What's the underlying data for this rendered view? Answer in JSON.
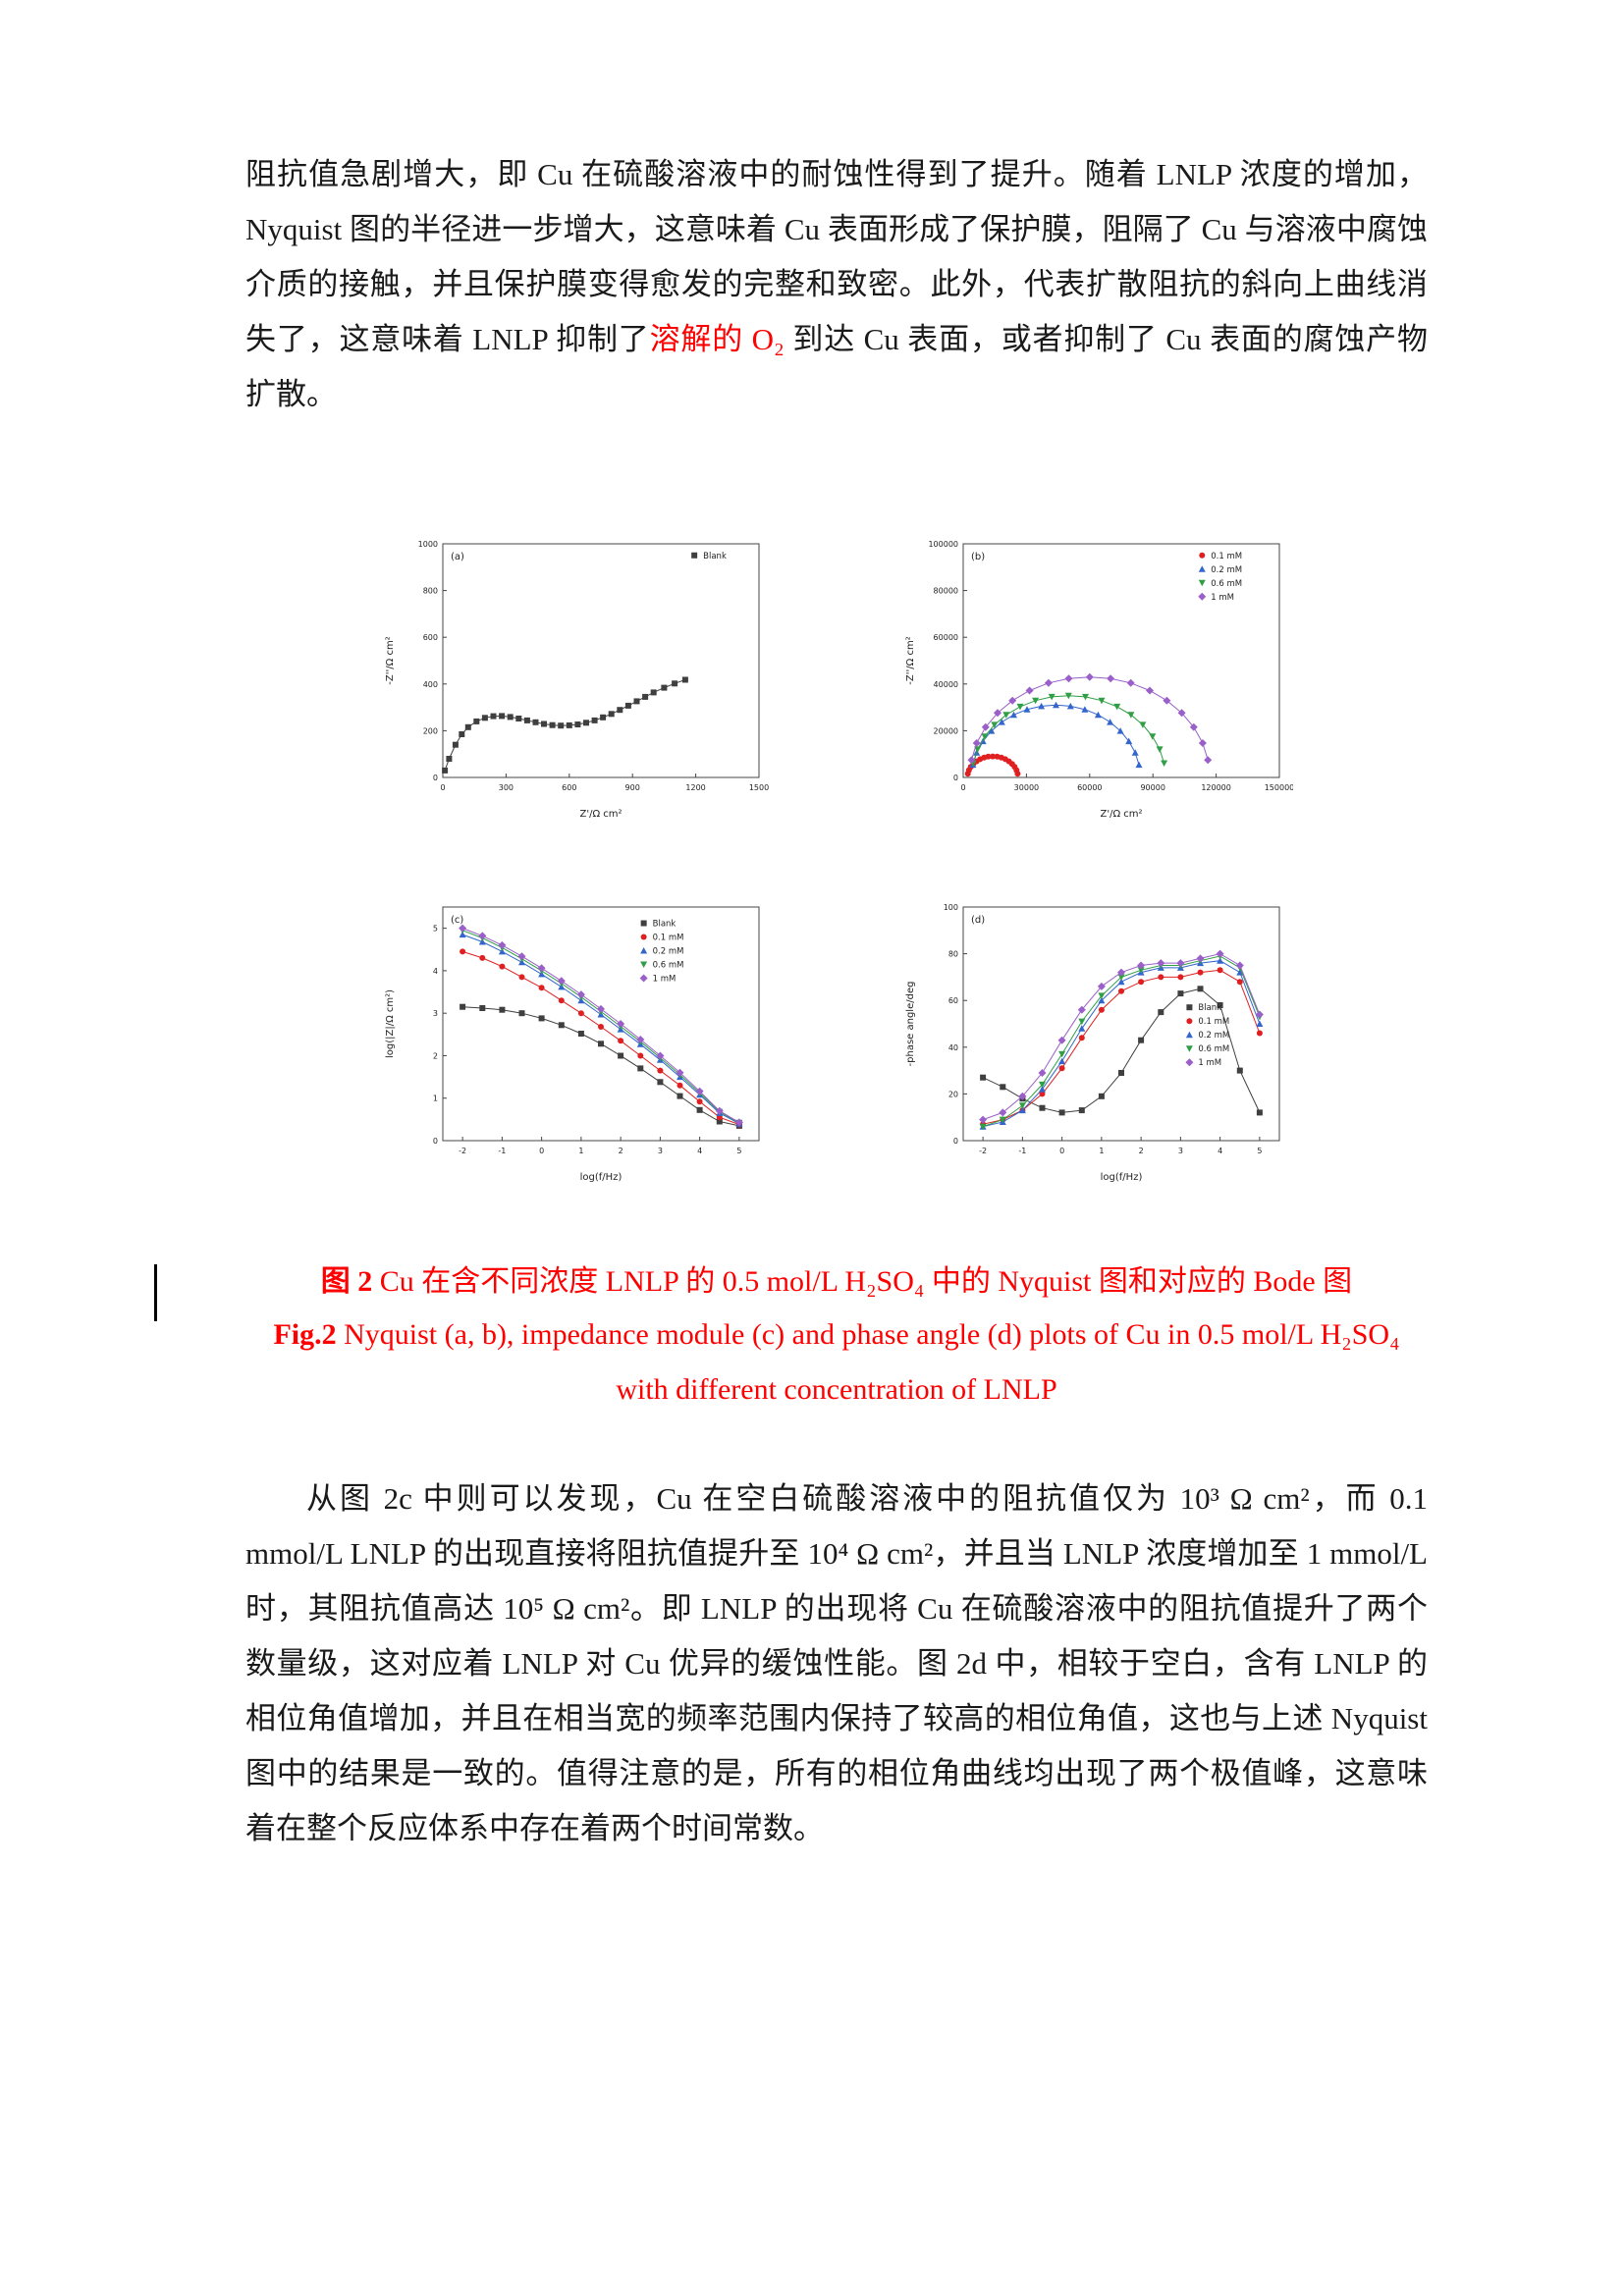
{
  "document": {
    "paragraph1": {
      "part1": "阻抗值急剧增大，即 Cu 在硫酸溶液中的耐蚀性得到了提升。随着 LNLP 浓度的增加，Nyquist 图的半径进一步增大，这意味着 Cu 表面形成了保护膜，阻隔了 Cu 与溶液中腐蚀介质的接触，并且保护膜变得愈发的完整和致密。此外，代表扩散阻抗的斜向上曲线消失了，这意味着 LNLP 抑制了",
      "red": "溶解的 O₂ ",
      "part2": "到达 Cu 表面，或者抑制了 Cu 表面的腐蚀产物扩散。"
    },
    "caption_cn": {
      "bold": "图 2",
      "rest": " Cu 在含不同浓度 LNLP 的 0.5 mol/L H₂SO₄ 中的 Nyquist 图和对应的 Bode 图"
    },
    "caption_en": {
      "bold": "Fig.2",
      "line1_rest": " Nyquist (a, b), impedance module (c) and phase angle (d) plots of Cu in 0.5 mol/L H₂SO₄",
      "line2": "with different concentration of LNLP"
    },
    "paragraph2": "从图 2c 中则可以发现，Cu 在空白硫酸溶液中的阻抗值仅为 10³ Ω cm²，而 0.1 mmol/L LNLP 的出现直接将阻抗值提升至 10⁴ Ω cm²，并且当 LNLP 浓度增加至 1 mmol/L 时，其阻抗值高达 10⁵ Ω cm²。即 LNLP 的出现将 Cu 在硫酸溶液中的阻抗值提升了两个数量级，这对应着 LNLP 对 Cu 优异的缓蚀性能。图 2d 中，相较于空白，含有 LNLP 的相位角值增加，并且在相当宽的频率范围内保持了较高的相位角值，这也与上述 Nyquist 图中的结果是一致的。值得注意的是，所有的相位角曲线均出现了两个极值峰，这意味着在整个反应体系中存在着两个时间常数。"
  },
  "colors": {
    "caption_red": "#ff0000",
    "series_blank": "#3f3f3f",
    "series_01mM": "#e02020",
    "series_02mM": "#3366cc",
    "series_06mM": "#2f9e44",
    "series_1mM": "#9a5fc9"
  },
  "chart_data": [
    {
      "id": "a",
      "type": "scatter",
      "panel": "(a)",
      "title": "",
      "xlabel": "Z'/Ω cm²",
      "ylabel": "-Z''/Ω cm²",
      "xlim": [
        0,
        1500
      ],
      "ylim": [
        0,
        1000
      ],
      "xticks": [
        0,
        300,
        600,
        900,
        1200,
        1500
      ],
      "yticks": [
        0,
        200,
        400,
        600,
        800,
        1000
      ],
      "legend": {
        "fx": 0.78,
        "fy": 0.02
      },
      "series": [
        {
          "name": "Blank",
          "color": "#3f3f3f",
          "marker": "square",
          "x": [
            10,
            30,
            60,
            90,
            120,
            160,
            200,
            240,
            280,
            320,
            360,
            400,
            440,
            480,
            520,
            560,
            600,
            640,
            680,
            720,
            760,
            800,
            840,
            880,
            920,
            960,
            1000,
            1050,
            1100,
            1150
          ],
          "y": [
            30,
            80,
            140,
            185,
            215,
            240,
            255,
            262,
            263,
            259,
            252,
            244,
            236,
            229,
            224,
            222,
            223,
            227,
            234,
            244,
            257,
            272,
            289,
            307,
            326,
            345,
            364,
            384,
            402,
            418
          ]
        }
      ]
    },
    {
      "id": "b",
      "type": "scatter",
      "panel": "(b)",
      "title": "",
      "xlabel": "Z'/Ω cm²",
      "ylabel": "-Z''/Ω cm²",
      "xlim": [
        0,
        150000
      ],
      "ylim": [
        0,
        100000
      ],
      "xticks": [
        0,
        30000,
        60000,
        90000,
        120000,
        150000
      ],
      "yticks": [
        0,
        20000,
        40000,
        60000,
        80000,
        100000
      ],
      "legend": {
        "fx": 0.74,
        "fy": 0.02
      },
      "series": [
        {
          "name": "0.1 mM",
          "color": "#e02020",
          "marker": "circle",
          "x": [
            2200,
            2700,
            3600,
            4800,
            6300,
            8000,
            9900,
            11900,
            14000,
            16100,
            18100,
            20000,
            21700,
            23200,
            24400,
            25300,
            25800
          ],
          "y": [
            1600,
            3100,
            4500,
            5800,
            6900,
            7800,
            8500,
            8900,
            9000,
            8900,
            8500,
            7800,
            6900,
            5800,
            4500,
            3100,
            1600
          ]
        },
        {
          "name": "0.2 mM",
          "color": "#3366cc",
          "marker": "triangle-up",
          "x": [
            4600,
            6400,
            9400,
            13400,
            18300,
            24000,
            30300,
            37100,
            44000,
            50900,
            57700,
            64000,
            69700,
            74600,
            78600,
            81600,
            83400
          ],
          "y": [
            5400,
            10600,
            15500,
            19900,
            23700,
            26800,
            29100,
            30500,
            31000,
            30500,
            29100,
            26800,
            23700,
            19900,
            15500,
            10600,
            5400
          ]
        },
        {
          "name": "0.6 mM",
          "color": "#2f9e44",
          "marker": "triangle-down",
          "x": [
            4700,
            6800,
            10200,
            14800,
            20400,
            27000,
            34300,
            42000,
            50000,
            58000,
            65700,
            73000,
            79600,
            85200,
            89800,
            93200,
            95300
          ],
          "y": [
            6100,
            12000,
            17500,
            22500,
            26800,
            30300,
            32900,
            34500,
            35000,
            34500,
            32900,
            30300,
            26800,
            22500,
            17500,
            12000,
            6100
          ]
        },
        {
          "name": "1 mM",
          "color": "#9a5fc9",
          "marker": "diamond",
          "x": [
            3900,
            6400,
            10600,
            16300,
            23400,
            31500,
            40500,
            50100,
            60000,
            69900,
            79500,
            88500,
            96600,
            103700,
            109400,
            113600,
            116100
          ],
          "y": [
            7500,
            14700,
            21500,
            27600,
            32900,
            37200,
            40400,
            42300,
            43000,
            42300,
            40400,
            37200,
            32900,
            27600,
            21500,
            14700,
            7500
          ]
        }
      ]
    },
    {
      "id": "c",
      "type": "line",
      "panel": "(c)",
      "title": "",
      "xlabel": "log(f/Hz)",
      "ylabel": "log(|Z|/Ω cm²)",
      "xlim": [
        -2.5,
        5.5
      ],
      "ylim": [
        0,
        5.5
      ],
      "xticks": [
        -2,
        -1,
        0,
        1,
        2,
        3,
        4,
        5
      ],
      "yticks": [
        0,
        1,
        2,
        3,
        4,
        5
      ],
      "legend": {
        "fx": 0.62,
        "fy": 0.04
      },
      "x": [
        -2,
        -1.5,
        -1,
        -0.5,
        0,
        0.5,
        1,
        1.5,
        2,
        2.5,
        3,
        3.5,
        4,
        4.5,
        5
      ],
      "series": [
        {
          "name": "Blank",
          "color": "#3f3f3f",
          "marker": "square",
          "y": [
            3.15,
            3.12,
            3.08,
            3.0,
            2.88,
            2.72,
            2.52,
            2.28,
            2.0,
            1.7,
            1.38,
            1.05,
            0.72,
            0.45,
            0.35
          ]
        },
        {
          "name": "0.1 mM",
          "color": "#e02020",
          "marker": "circle",
          "y": [
            4.45,
            4.3,
            4.1,
            3.85,
            3.6,
            3.3,
            3.0,
            2.68,
            2.35,
            2.0,
            1.65,
            1.3,
            0.92,
            0.55,
            0.38
          ]
        },
        {
          "name": "0.2 mM",
          "color": "#3366cc",
          "marker": "triangle-up",
          "y": [
            4.85,
            4.68,
            4.45,
            4.2,
            3.92,
            3.62,
            3.3,
            2.97,
            2.62,
            2.27,
            1.9,
            1.5,
            1.08,
            0.65,
            0.4
          ]
        },
        {
          "name": "0.6 mM",
          "color": "#2f9e44",
          "marker": "triangle-down",
          "y": [
            4.95,
            4.77,
            4.54,
            4.28,
            4.0,
            3.7,
            3.38,
            3.04,
            2.69,
            2.33,
            1.95,
            1.55,
            1.12,
            0.68,
            0.42
          ]
        },
        {
          "name": "1 mM",
          "color": "#9a5fc9",
          "marker": "diamond",
          "y": [
            5.0,
            4.82,
            4.6,
            4.34,
            4.06,
            3.76,
            3.44,
            3.1,
            2.75,
            2.38,
            2.0,
            1.6,
            1.16,
            0.7,
            0.43
          ]
        }
      ]
    },
    {
      "id": "d",
      "type": "line",
      "panel": "(d)",
      "title": "",
      "xlabel": "log(f/Hz)",
      "ylabel": "-phase angle/deg",
      "xlim": [
        -2.5,
        5.5
      ],
      "ylim": [
        0,
        100
      ],
      "xticks": [
        -2,
        -1,
        0,
        1,
        2,
        3,
        4,
        5
      ],
      "yticks": [
        0,
        20,
        40,
        60,
        80,
        100
      ],
      "legend": {
        "fx": 0.7,
        "fy": 0.4
      },
      "x": [
        -2,
        -1.5,
        -1,
        -0.5,
        0,
        0.5,
        1,
        1.5,
        2,
        2.5,
        3,
        3.5,
        4,
        4.5,
        5
      ],
      "series": [
        {
          "name": "Blank",
          "color": "#3f3f3f",
          "marker": "square",
          "y": [
            27,
            23,
            18,
            14,
            12,
            13,
            19,
            29,
            43,
            55,
            63,
            65,
            58,
            30,
            12
          ]
        },
        {
          "name": "0.1 mM",
          "color": "#e02020",
          "marker": "circle",
          "y": [
            7,
            9,
            13,
            20,
            31,
            44,
            56,
            64,
            68,
            70,
            70,
            72,
            73,
            68,
            46
          ]
        },
        {
          "name": "0.2 mM",
          "color": "#3366cc",
          "marker": "triangle-up",
          "y": [
            6,
            8,
            13,
            22,
            34,
            48,
            60,
            68,
            72,
            74,
            74,
            76,
            77,
            72,
            50
          ]
        },
        {
          "name": "0.6 mM",
          "color": "#2f9e44",
          "marker": "triangle-down",
          "y": [
            6,
            9,
            15,
            24,
            37,
            51,
            62,
            70,
            73,
            75,
            75,
            77,
            79,
            74,
            53
          ]
        },
        {
          "name": "1 mM",
          "color": "#9a5fc9",
          "marker": "diamond",
          "y": [
            9,
            12,
            19,
            29,
            43,
            56,
            66,
            72,
            75,
            76,
            76,
            78,
            80,
            75,
            54
          ]
        }
      ]
    }
  ]
}
